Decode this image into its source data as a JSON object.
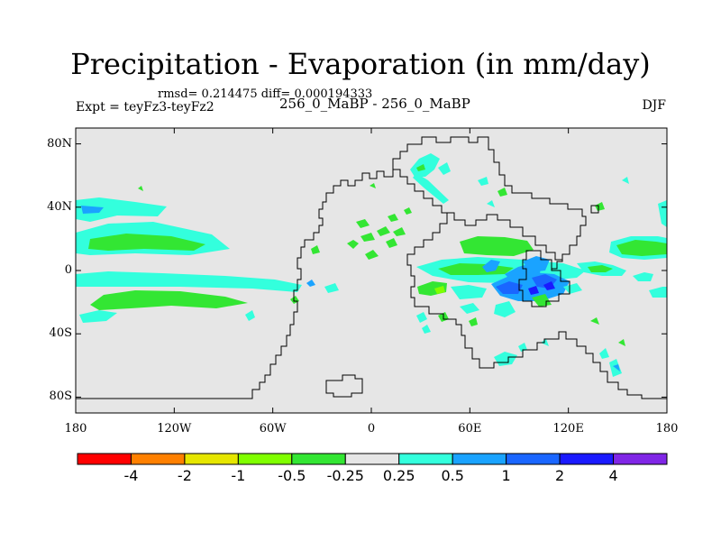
{
  "title": "Precipitation - Evaporation (in mm/day)",
  "stats": "rmsd= 0.214475  diff= 0.000194333",
  "expt_label": "Expt = teyFz3-teyFz2",
  "case_label": "256_0_MaBP - 256_0_MaBP",
  "season": "DJF",
  "chart_data": {
    "type": "map-contour",
    "variable": "Precipitation - Evaporation",
    "units": "mm/day",
    "lon_range": [
      -180,
      180
    ],
    "lat_range": [
      -90,
      90
    ],
    "x_ticks": [
      {
        "lon": -180,
        "label": "180"
      },
      {
        "lon": -120,
        "label": "120W"
      },
      {
        "lon": -60,
        "label": "60W"
      },
      {
        "lon": 0,
        "label": "0"
      },
      {
        "lon": 60,
        "label": "60E"
      },
      {
        "lon": 120,
        "label": "120E"
      },
      {
        "lon": 180,
        "label": "180"
      }
    ],
    "y_ticks": [
      {
        "lat": 80,
        "label": "80N"
      },
      {
        "lat": 40,
        "label": "40N"
      },
      {
        "lat": 0,
        "label": "0"
      },
      {
        "lat": -40,
        "label": "40S"
      },
      {
        "lat": -80,
        "label": "80S"
      }
    ],
    "colorbar": {
      "colors": [
        "#ff0000",
        "#ff8000",
        "#e6e600",
        "#80ff00",
        "#33e633",
        "#e6e6e6",
        "#33ffdd",
        "#1aa3ff",
        "#1a66ff",
        "#1a1aff",
        "#8026e6"
      ],
      "levels": [
        "-4",
        "-2",
        "-1",
        "-0.5",
        "-0.25",
        "0.25",
        "0.5",
        "1",
        "2",
        "4"
      ]
    }
  }
}
